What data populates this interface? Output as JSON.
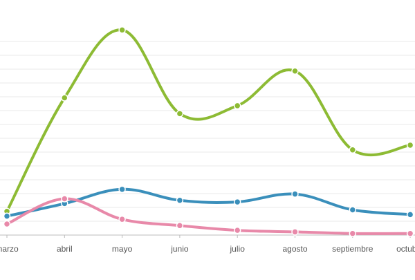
{
  "chart_data": {
    "type": "line",
    "categories": [
      "marzo",
      "abril",
      "mayo",
      "junio",
      "julio",
      "agosto",
      "septiembre",
      "octubre"
    ],
    "ylim": [
      0,
      13.5
    ],
    "grid": true,
    "legend": "none",
    "series": [
      {
        "color": "#8dbb34",
        "values": [
          1.5,
          8.7,
          13.0,
          7.7,
          8.2,
          10.4,
          5.4,
          5.7
        ]
      },
      {
        "color": "#3a8fbb",
        "values": [
          1.2,
          2.0,
          2.9,
          2.2,
          2.1,
          2.6,
          1.6,
          1.3
        ]
      },
      {
        "color": "#e889a9",
        "values": [
          0.7,
          2.3,
          1.0,
          0.6,
          0.3,
          0.2,
          0.1,
          0.1
        ]
      }
    ]
  }
}
